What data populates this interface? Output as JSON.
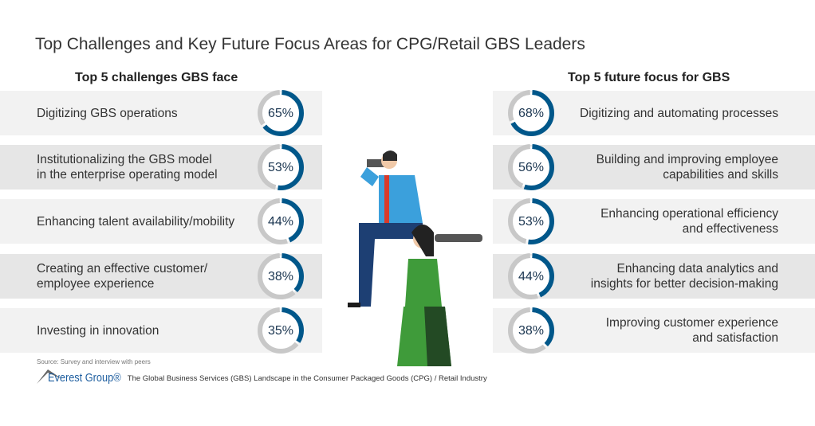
{
  "title": "Top Challenges and Key Future Focus Areas for CPG/Retail GBS Leaders",
  "colors": {
    "accent": "#00578a",
    "ring_bg": "#c8c8c8",
    "row_light": "#f2f2f2",
    "row_dark": "#e6e6e6"
  },
  "chart_data": [
    {
      "type": "donut",
      "title": "Top 5 challenges GBS face",
      "categories": [
        "Digitizing GBS operations",
        "Institutionalizing the GBS model\nin the enterprise operating model",
        "Enhancing talent availability/mobility",
        "Creating an effective customer/\nemployee experience",
        "Investing in innovation"
      ],
      "values": [
        65,
        53,
        44,
        38,
        35
      ],
      "labels": [
        "65%",
        "53%",
        "44%",
        "38%",
        "35%"
      ]
    },
    {
      "type": "donut",
      "title": "Top 5 future focus for GBS",
      "categories": [
        "Digitizing and automating processes",
        "Building and improving employee\ncapabilities and skills",
        "Enhancing operational efficiency\nand effectiveness",
        "Enhancing data analytics and\ninsights for better decision-making",
        "Improving customer experience\nand satisfaction"
      ],
      "values": [
        68,
        56,
        53,
        44,
        38
      ],
      "labels": [
        "68%",
        "56%",
        "53%",
        "44%",
        "38%"
      ]
    }
  ],
  "source": "Source: Survey and interview with peers",
  "footer": {
    "brand": "Everest Group®",
    "text": "The Global Business Services (GBS) Landscape in the Consumer Packaged Goods (CPG) / Retail Industry"
  }
}
